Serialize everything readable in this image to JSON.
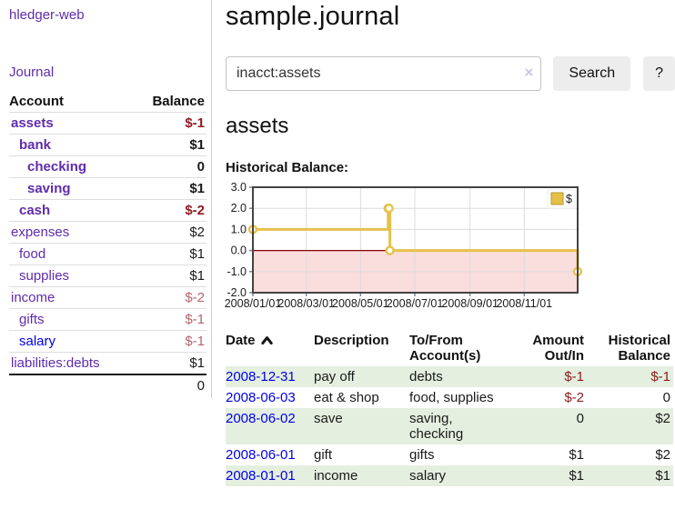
{
  "sidebar": {
    "app_title": "hledger-web",
    "nav": {
      "journal": "Journal"
    },
    "accounts_table": {
      "headers": {
        "account": "Account",
        "balance": "Balance"
      },
      "rows": [
        {
          "name": "assets",
          "balance": "$-1",
          "depth": 1,
          "bold": true,
          "negative": "strong"
        },
        {
          "name": "bank",
          "balance": "$1",
          "depth": 2,
          "bold": true,
          "negative": "none"
        },
        {
          "name": "checking",
          "balance": "0",
          "depth": 3,
          "bold": true,
          "negative": "none"
        },
        {
          "name": "saving",
          "balance": "$1",
          "depth": 3,
          "bold": true,
          "negative": "none"
        },
        {
          "name": "cash",
          "balance": "$-2",
          "depth": 2,
          "bold": true,
          "negative": "strong"
        },
        {
          "name": "expenses",
          "balance": "$2",
          "depth": 1,
          "bold": false,
          "negative": "none"
        },
        {
          "name": "food",
          "balance": "$1",
          "depth": 2,
          "bold": false,
          "negative": "none"
        },
        {
          "name": "supplies",
          "balance": "$1",
          "depth": 2,
          "bold": false,
          "negative": "none"
        },
        {
          "name": "income",
          "balance": "$-2",
          "depth": 1,
          "bold": false,
          "negative": "dim"
        },
        {
          "name": "gifts",
          "balance": "$-1",
          "depth": 2,
          "bold": false,
          "negative": "dim"
        },
        {
          "name": "salary",
          "balance": "$-1",
          "depth": 2,
          "bold": false,
          "negative": "dim"
        },
        {
          "name": "liabilities:debts",
          "balance": "$1",
          "depth": 1,
          "bold": false,
          "negative": "none"
        }
      ],
      "total": "0"
    }
  },
  "main": {
    "title": "sample.journal",
    "search": {
      "value": "inacct:assets",
      "clear_icon": "×",
      "button": "Search",
      "help_button": "?"
    },
    "account_heading": "assets",
    "chart_label": "Historical Balance:"
  },
  "chart_data": {
    "type": "line",
    "title": "Historical Balance:",
    "step": true,
    "series": [
      {
        "name": "$",
        "color": "#e6c14a",
        "points": [
          [
            "2008-01-01",
            1
          ],
          [
            "2008-06-01",
            2
          ],
          [
            "2008-06-02",
            2
          ],
          [
            "2008-06-03",
            0
          ],
          [
            "2008-12-31",
            -1
          ]
        ]
      }
    ],
    "x_tick_labels": [
      "2008/01/01",
      "2008/03/01",
      "2008/05/01",
      "2008/07/01",
      "2008/09/01",
      "2008/11/01"
    ],
    "y_ticks": [
      3.0,
      2.0,
      1.0,
      0.0,
      -1.0,
      -2.0
    ],
    "ylim": [
      -2,
      3
    ],
    "xlim_days": [
      0,
      365
    ],
    "grid": true,
    "negative_fill": "#fadddd",
    "zero_line_color": "#8b0000",
    "legend": {
      "label": "$",
      "position": "top-right"
    }
  },
  "register": {
    "headers": {
      "date": "Date",
      "description": "Description",
      "accounts": "To/From Account(s)",
      "amount": "Amount Out/In",
      "balance": "Historical Balance"
    },
    "rows": [
      {
        "date": "2008-12-31",
        "description": "pay off",
        "accounts": "debts",
        "amount": "$-1",
        "balance": "$-1"
      },
      {
        "date": "2008-06-03",
        "description": "eat & shop",
        "accounts": "food, supplies",
        "amount": "$-2",
        "balance": "0"
      },
      {
        "date": "2008-06-02",
        "description": "save",
        "accounts": "saving, checking",
        "amount": "0",
        "balance": "$2"
      },
      {
        "date": "2008-06-01",
        "description": "gift",
        "accounts": "gifts",
        "amount": "$1",
        "balance": "$2"
      },
      {
        "date": "2008-01-01",
        "description": "income",
        "accounts": "salary",
        "amount": "$1",
        "balance": "$1"
      }
    ]
  },
  "colors": {
    "accent_purple": "#5f2cad",
    "link_blue": "#0000e8",
    "negative_strong": "#8e1c20",
    "negative_dim": "#b5656f",
    "row_green": "#e4efdf",
    "chart_gold": "#e6c14a",
    "chart_negative_area": "#fadddd",
    "chart_zero_line": "#8b0000"
  }
}
